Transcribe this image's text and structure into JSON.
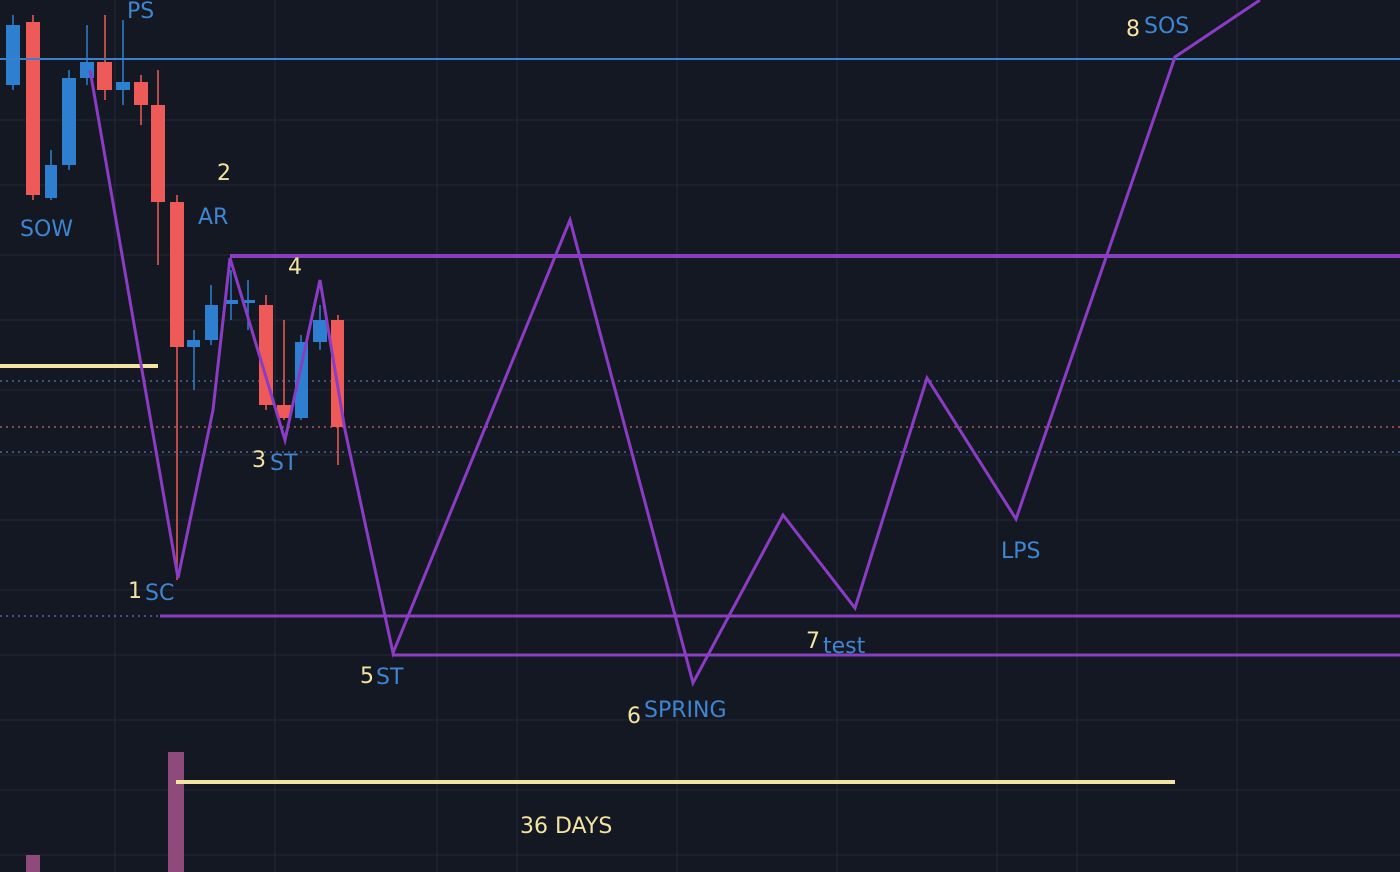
{
  "chart": {
    "top_labels": {
      "ps": "PS",
      "sow": "SOW",
      "ar": "AR",
      "lps": "LPS"
    },
    "phases": [
      {
        "number": "1",
        "label": "SC"
      },
      {
        "number": "2"
      },
      {
        "number": "3",
        "label": "ST"
      },
      {
        "number": "4"
      },
      {
        "number": "5",
        "label": "ST"
      },
      {
        "number": "6",
        "label": "SPRING"
      },
      {
        "number": "7",
        "label": "test"
      },
      {
        "number": "8",
        "label": "SOS"
      }
    ],
    "duration": "36 DAYS"
  }
}
